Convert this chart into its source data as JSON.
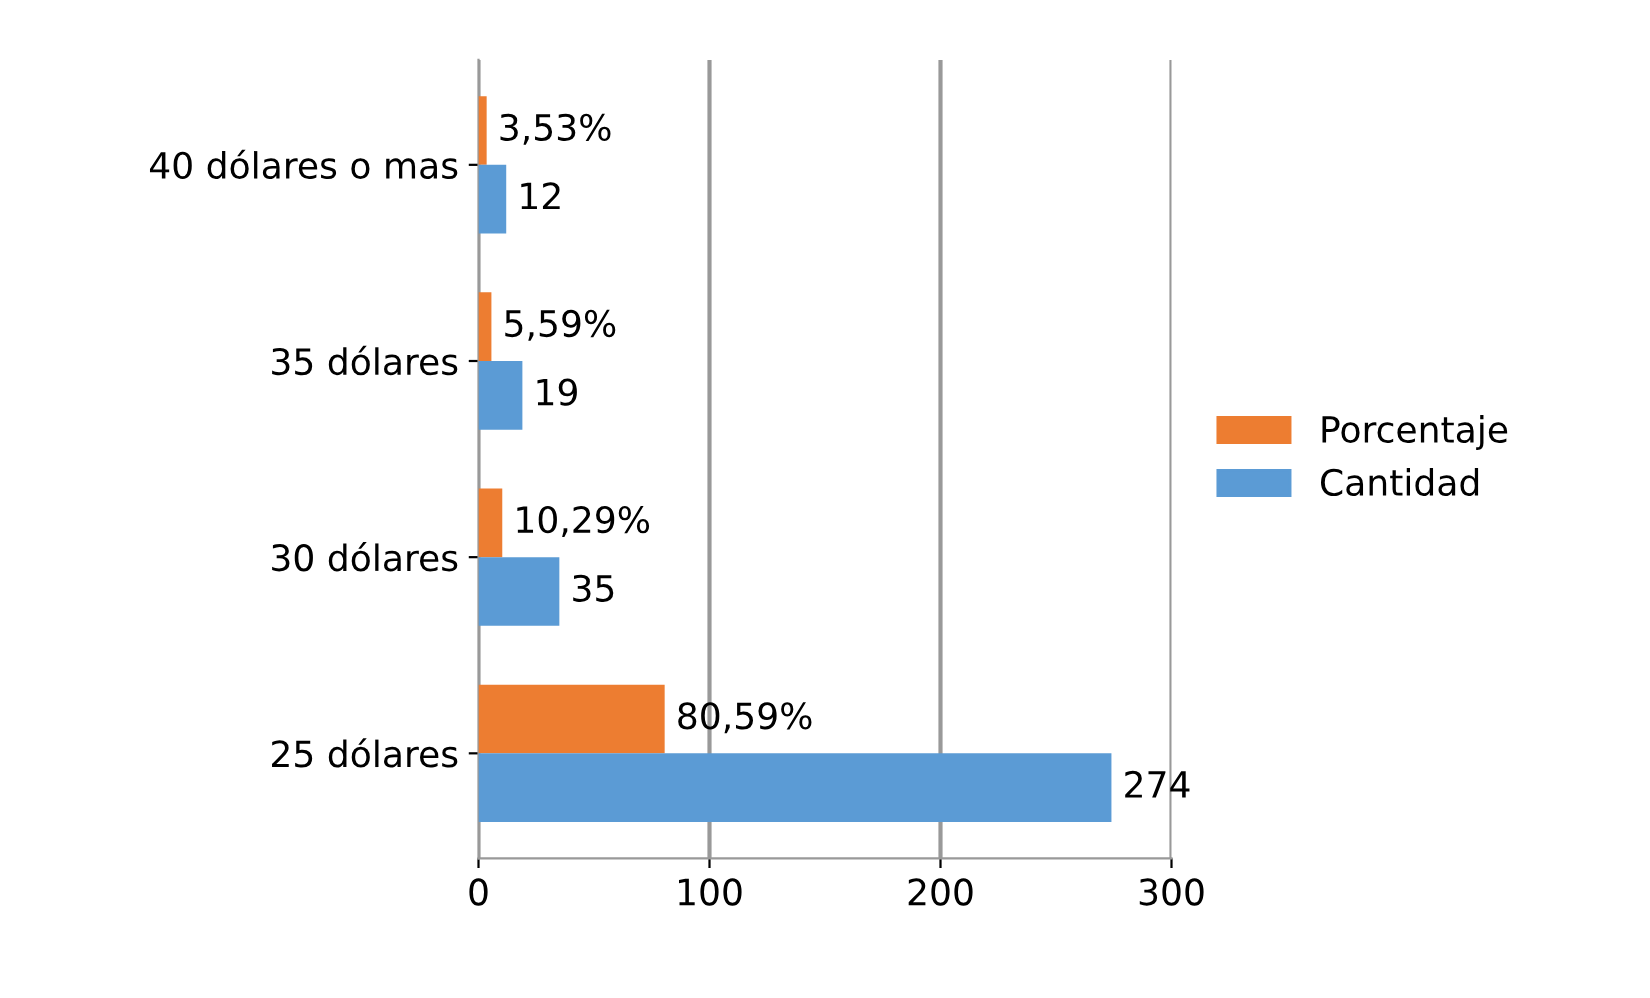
{
  "chart_data": {
    "type": "bar",
    "orientation": "horizontal",
    "categories": [
      "40 dólares o mas",
      "35 dólares",
      "30 dólares",
      "25 dólares"
    ],
    "series": [
      {
        "name": "Porcentaje",
        "color": "#ed7d31",
        "values": [
          3.53,
          5.59,
          10.29,
          80.59
        ],
        "value_labels": [
          "3,53%",
          "5,59%",
          "10,29%",
          "80,59%"
        ]
      },
      {
        "name": "Cantidad",
        "color": "#5b9bd5",
        "values": [
          12,
          19,
          35,
          274
        ],
        "value_labels": [
          "12",
          "19",
          "35",
          "274"
        ]
      }
    ],
    "xlim": [
      0,
      300
    ],
    "xticks": [
      0,
      100,
      200,
      300
    ],
    "grid": "x",
    "legend": "right"
  }
}
